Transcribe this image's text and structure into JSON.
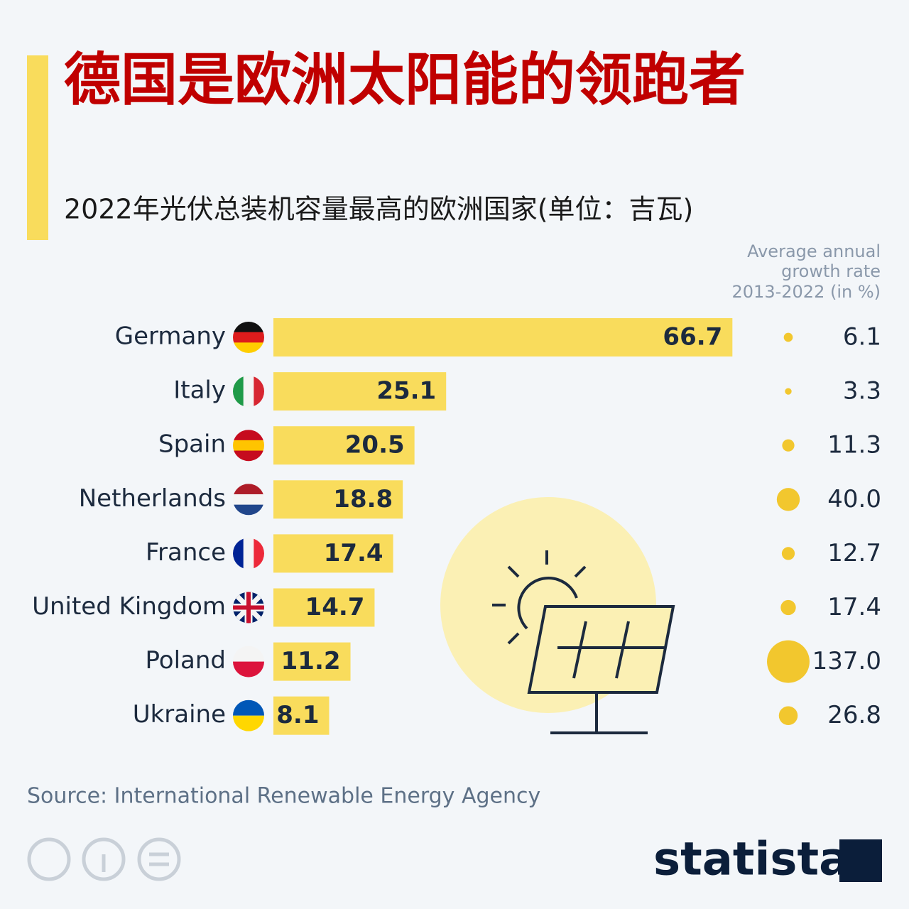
{
  "chart_data": {
    "type": "bar",
    "title": "德国是欧洲太阳能的领跑者",
    "subtitle": "2022年光伏总装机容量最高的欧洲国家(单位：吉瓦)",
    "categories": [
      "Germany",
      "Italy",
      "Spain",
      "Netherlands",
      "France",
      "United Kingdom",
      "Poland",
      "Ukraine"
    ],
    "values": [
      66.7,
      25.1,
      20.5,
      18.8,
      17.4,
      14.7,
      11.2,
      8.1
    ],
    "color": "#f9dc5c",
    "growth": {
      "label": [
        "Average annual",
        "growth rate",
        "2013-2022 (in %)"
      ],
      "values": [
        6.1,
        3.3,
        11.3,
        40.0,
        12.7,
        17.4,
        137.0,
        26.8
      ],
      "value_labels": [
        "6.1",
        "3.3",
        "11.3",
        "40.0",
        "12.7",
        "17.4",
        "137.0",
        "26.8"
      ],
      "color": "#f2c72e"
    },
    "source": "Source: International Renewable Energy Agency",
    "logo": "statista"
  }
}
